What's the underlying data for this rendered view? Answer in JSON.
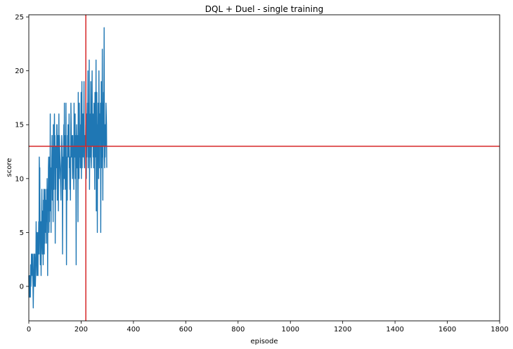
{
  "chart_data": {
    "type": "line",
    "title": "DQL + Duel - single training",
    "xlabel": "episode",
    "ylabel": "score",
    "xlim": [
      0,
      1800
    ],
    "ylim": [
      -3.2,
      25.2
    ],
    "xticks": [
      0,
      200,
      400,
      600,
      800,
      1000,
      1200,
      1400,
      1600,
      1800
    ],
    "yticks": [
      0,
      5,
      10,
      15,
      20,
      25
    ],
    "grid": false,
    "legend": "none",
    "series": [
      {
        "color": "#1f77b4",
        "x_start": 0,
        "x_step": 1,
        "values": [
          1,
          -1,
          0,
          1,
          0,
          -1,
          -1,
          2,
          0,
          1,
          3,
          1,
          2,
          2,
          3,
          1,
          0,
          -2,
          0,
          3,
          1,
          1,
          0,
          3,
          2,
          0,
          1,
          2,
          6,
          2,
          4,
          1,
          5,
          3,
          2,
          1,
          5,
          4,
          6,
          3,
          12,
          10,
          11,
          4,
          2,
          3,
          6,
          1,
          5,
          6,
          9,
          4,
          3,
          5,
          7,
          2,
          8,
          6,
          9,
          3,
          7,
          4,
          9,
          6,
          8,
          5,
          7,
          4,
          9,
          6,
          10,
          8,
          1,
          9,
          7,
          11,
          12,
          5,
          10,
          6,
          12,
          8,
          16,
          7,
          11,
          5,
          10,
          9,
          12,
          14,
          8,
          13,
          12,
          6,
          15,
          11,
          9,
          13,
          16,
          12,
          14,
          4,
          10,
          9,
          13,
          11,
          12,
          15,
          15,
          8,
          10,
          14,
          12,
          7,
          13,
          16,
          10,
          14,
          13,
          12,
          11,
          10,
          9,
          8,
          11,
          12,
          14,
          13,
          11,
          3,
          10,
          12,
          9,
          13,
          15,
          10,
          17,
          11,
          14,
          9,
          13,
          10,
          17,
          11,
          2,
          10,
          12,
          8,
          14,
          12,
          15,
          13,
          13,
          12,
          16,
          11,
          11,
          9,
          12,
          8,
          12,
          17,
          15,
          12,
          14,
          13,
          13,
          10,
          14,
          12,
          13,
          11,
          9,
          17,
          14,
          12,
          15,
          16,
          10,
          14,
          12,
          2,
          13,
          15,
          13,
          11,
          12,
          14,
          6,
          18,
          13,
          15,
          10,
          17,
          14,
          12,
          13,
          11,
          15,
          14,
          18,
          10,
          13,
          19,
          11,
          14,
          13,
          16,
          12,
          15,
          13,
          19,
          12,
          11,
          14,
          13,
          14,
          13,
          15,
          12,
          10,
          16,
          12,
          15,
          17,
          13,
          20,
          11,
          14,
          17,
          12,
          21,
          9,
          13,
          15,
          16,
          12,
          19,
          12,
          11,
          14,
          17,
          20,
          13,
          13,
          16,
          12,
          15,
          11,
          17,
          14,
          13,
          9,
          18,
          12,
          16,
          13,
          21,
          7,
          14,
          18,
          12,
          5,
          15,
          13,
          17,
          13,
          10,
          20,
          15,
          11,
          16,
          14,
          14,
          17,
          5,
          13,
          19,
          11,
          16,
          12,
          22,
          15,
          8,
          17,
          13,
          18,
          16,
          24,
          12,
          11,
          15,
          12,
          14,
          13,
          17,
          16,
          15,
          11
        ]
      }
    ],
    "reference_lines": [
      {
        "orientation": "horizontal",
        "value": 13,
        "color": "#d62728"
      },
      {
        "orientation": "vertical",
        "value": 218,
        "color": "#d62728"
      }
    ]
  }
}
